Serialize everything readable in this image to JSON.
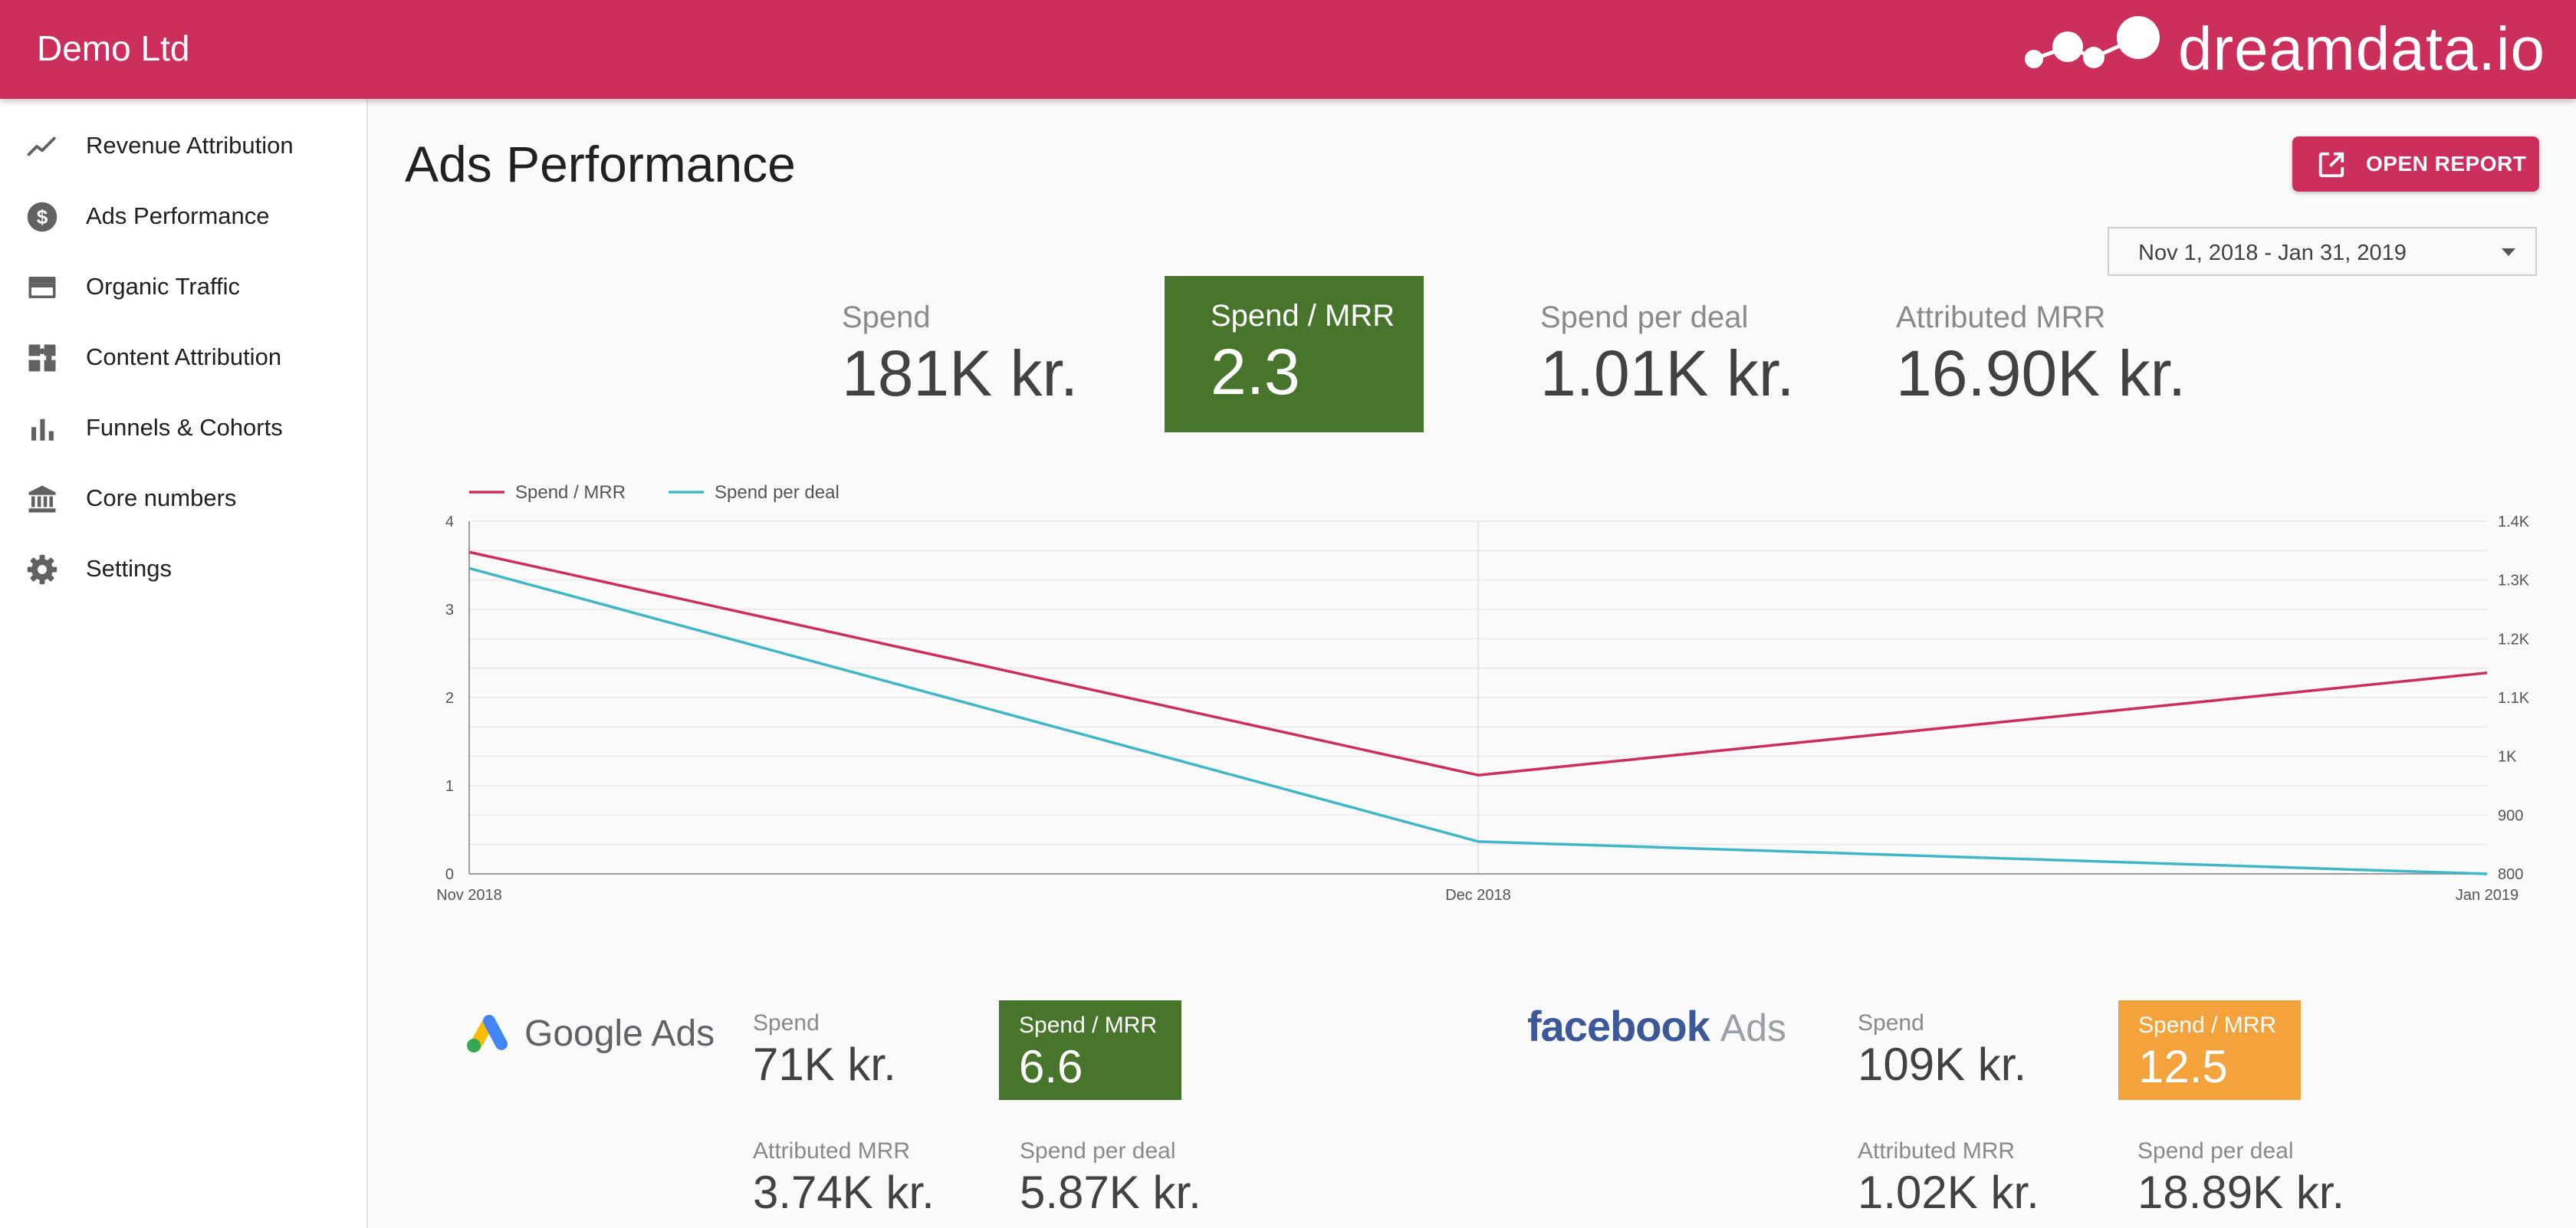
{
  "header": {
    "company": "Demo Ltd",
    "brand": "dreamdata.io"
  },
  "sidebar": {
    "items": [
      {
        "label": "Revenue Attribution",
        "icon": "trending-up-icon"
      },
      {
        "label": "Ads Performance",
        "icon": "dollar-circle-icon"
      },
      {
        "label": "Organic Traffic",
        "icon": "web-window-icon"
      },
      {
        "label": "Content Attribution",
        "icon": "content-puzzle-icon"
      },
      {
        "label": "Funnels & Cohorts",
        "icon": "bar-chart-icon"
      },
      {
        "label": "Core numbers",
        "icon": "bank-icon"
      },
      {
        "label": "Settings",
        "icon": "gear-icon"
      }
    ]
  },
  "main": {
    "title": "Ads Performance",
    "open_report_label": "OPEN REPORT",
    "date_range": "Nov 1, 2018 - Jan 31, 2019",
    "kpis": [
      {
        "label": "Spend",
        "value": "181K kr."
      },
      {
        "label": "Spend / MRR",
        "value": "2.3"
      },
      {
        "label": "Spend per deal",
        "value": "1.01K kr."
      },
      {
        "label": "Attributed MRR",
        "value": "16.90K kr."
      }
    ],
    "kpi_highlight_color": "#48752c"
  },
  "chart_data": {
    "type": "line",
    "categories": [
      "Nov 2018",
      "Dec 2018",
      "Jan 2019"
    ],
    "series": [
      {
        "name": "Spend / MRR",
        "axis": "left",
        "color": "#cd2f5d",
        "values": [
          3.65,
          1.12,
          2.28
        ]
      },
      {
        "name": "Spend per deal",
        "axis": "right",
        "color": "#3fb7c8",
        "values": [
          1320,
          855,
          800
        ]
      }
    ],
    "y_left": {
      "min": 0,
      "max": 4,
      "ticks": [
        "0",
        "1",
        "2",
        "3",
        "4"
      ]
    },
    "y_right": {
      "min": 800,
      "max": 1400,
      "ticks": [
        "800",
        "900",
        "1K",
        "1.1K",
        "1.2K",
        "1.3K",
        "1.4K"
      ]
    },
    "grid": true,
    "legend": "top-left"
  },
  "google_ads": {
    "name": "Google Ads",
    "spend_label": "Spend",
    "spend_value": "71K kr.",
    "ratio_label": "Spend / MRR",
    "ratio_value": "6.6",
    "ratio_color": "#48752c",
    "mrr_label": "Attributed MRR",
    "mrr_value": "3.74K kr.",
    "per_deal_label": "Spend per deal",
    "per_deal_value": "5.87K kr."
  },
  "facebook_ads": {
    "brand": "facebook",
    "suffix": "Ads",
    "spend_label": "Spend",
    "spend_value": "109K kr.",
    "ratio_label": "Spend / MRR",
    "ratio_value": "12.5",
    "ratio_color": "#f4a23b",
    "mrr_label": "Attributed MRR",
    "mrr_value": "1.02K kr.",
    "per_deal_label": "Spend per deal",
    "per_deal_value": "18.89K kr."
  }
}
